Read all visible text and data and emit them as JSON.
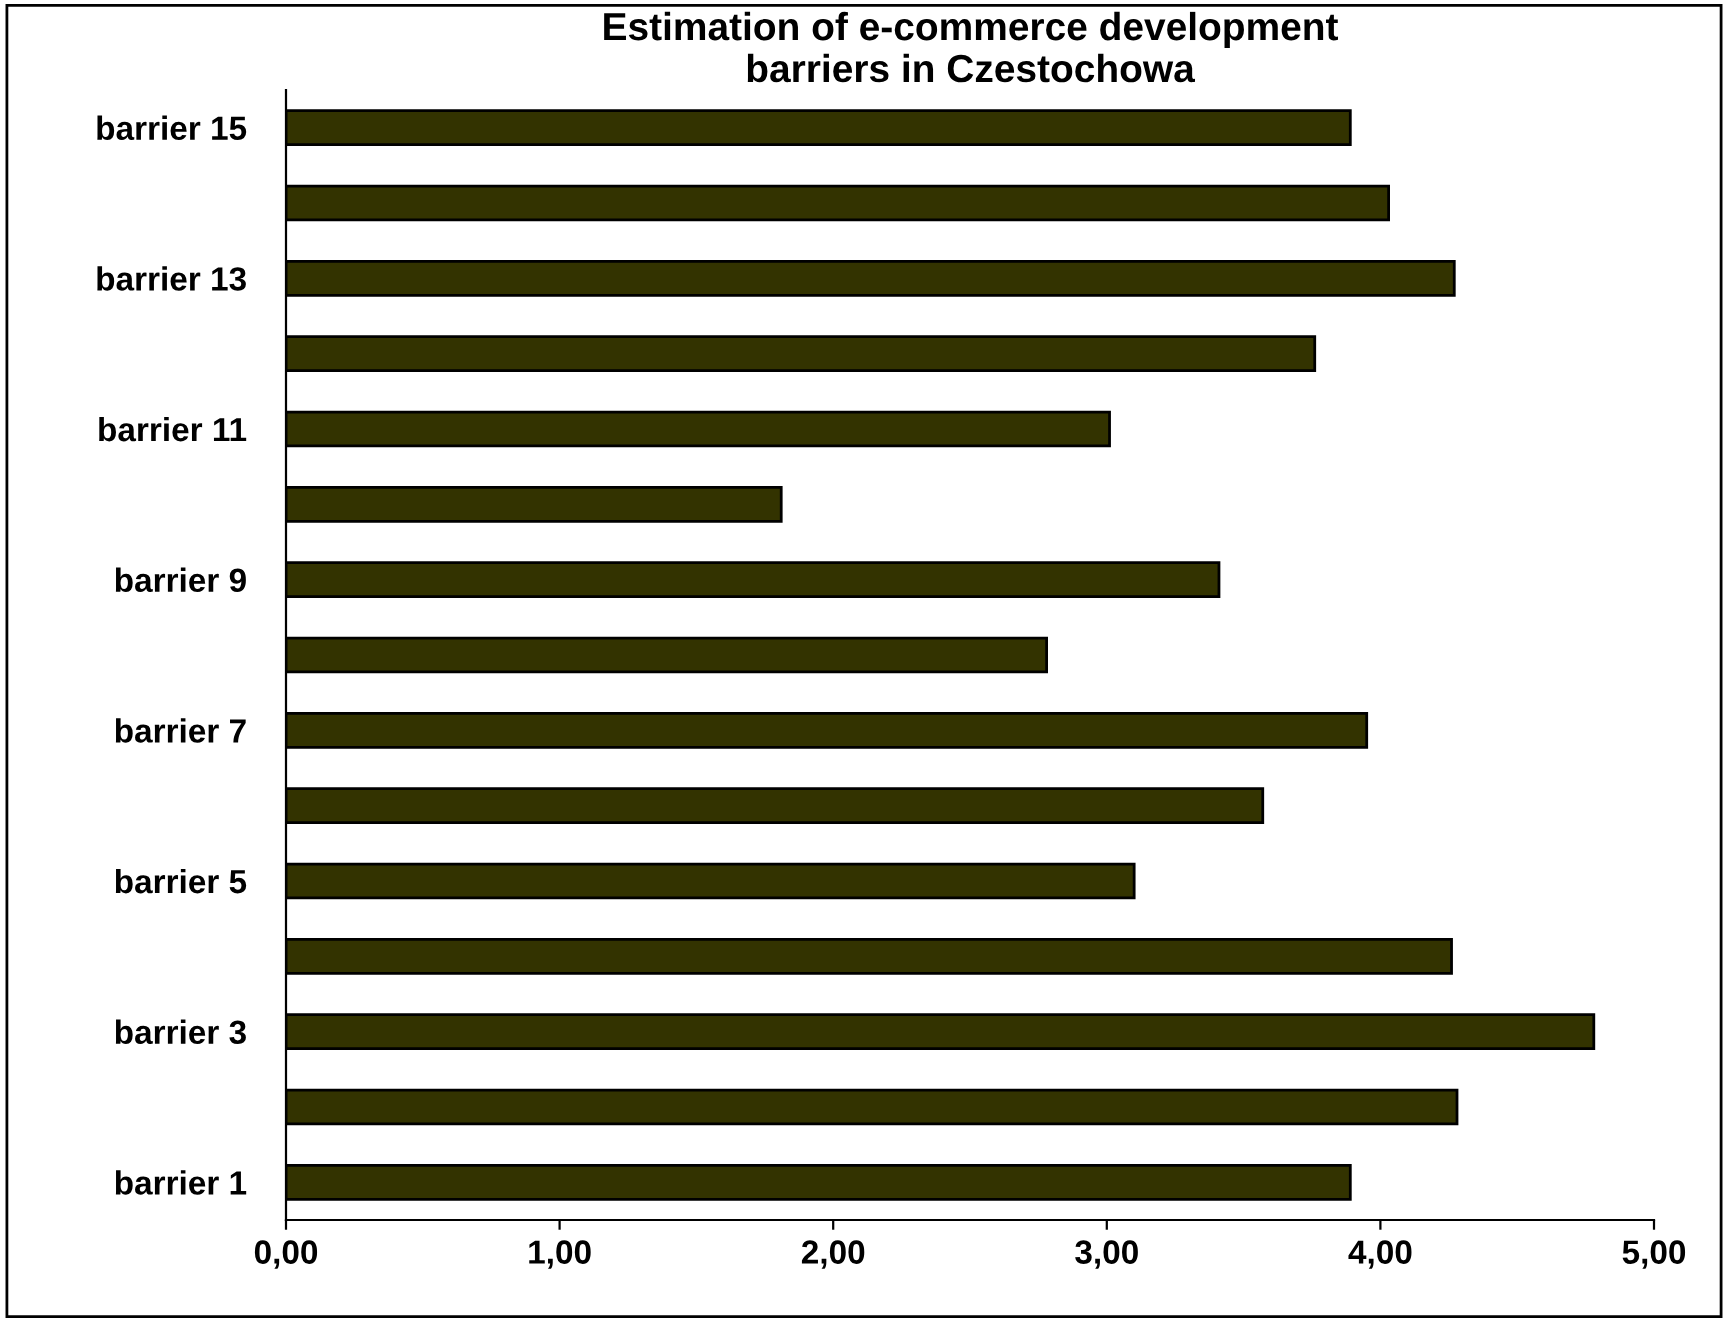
{
  "chart_data": {
    "type": "bar",
    "orientation": "horizontal",
    "title": "Estimation of e-commerce development\nbarriers in Czestochowa",
    "categories": [
      "barrier 15",
      null,
      "barrier 13",
      null,
      "barrier 11",
      null,
      "barrier 9",
      null,
      "barrier 7",
      null,
      "barrier 5",
      null,
      "barrier 3",
      null,
      "barrier 1"
    ],
    "values": [
      3.89,
      4.03,
      4.27,
      3.76,
      3.01,
      1.81,
      3.41,
      2.78,
      3.95,
      3.57,
      3.1,
      4.26,
      4.78,
      4.28,
      3.89
    ],
    "color": "#333300",
    "xlim": [
      0,
      5
    ],
    "xticks": [
      {
        "value": 0,
        "label": "0,00"
      },
      {
        "value": 1,
        "label": "1,00"
      },
      {
        "value": 2,
        "label": "2,00"
      },
      {
        "value": 3,
        "label": "3,00"
      },
      {
        "value": 4,
        "label": "4,00"
      },
      {
        "value": 5,
        "label": "5,00"
      }
    ],
    "grid": false,
    "legend": false
  }
}
